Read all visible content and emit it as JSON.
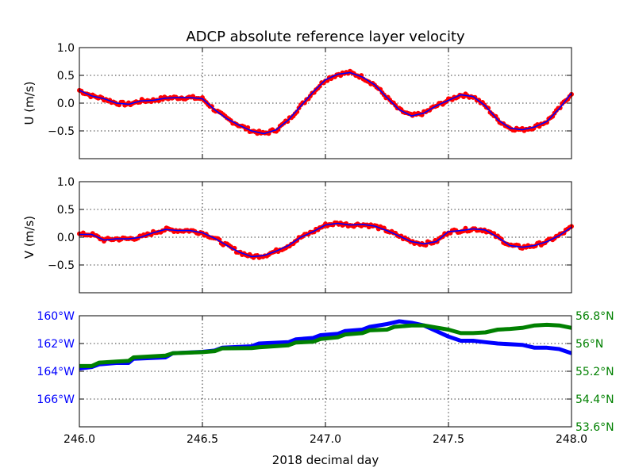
{
  "title": "ADCP absolute reference layer velocity",
  "xlabel": "2018 decimal day",
  "x_ticks": [
    "246.0",
    "246.5",
    "247.0",
    "247.5",
    "248.0"
  ],
  "colors": {
    "scatter": "#ff0000",
    "line": "#0000ff",
    "lon": "#0000ff",
    "lat": "#008000",
    "grid": "#000000"
  },
  "chart_data": [
    {
      "type": "line",
      "ylabel": "U (m/s)",
      "xlim": [
        246.0,
        248.0
      ],
      "ylim": [
        -1.0,
        1.0
      ],
      "y_ticks": [
        "1.0",
        "0.5",
        "0.0",
        "−0.5"
      ],
      "y_tick_values": [
        1.0,
        0.5,
        0.0,
        -0.5
      ],
      "grid": true,
      "series": [
        {
          "style": "red dots with blue smoothed line",
          "x": [
            246.0,
            246.05,
            246.1,
            246.15,
            246.2,
            246.25,
            246.3,
            246.35,
            246.4,
            246.45,
            246.5,
            246.55,
            246.6,
            246.65,
            246.7,
            246.75,
            246.8,
            246.85,
            246.9,
            246.95,
            247.0,
            247.05,
            247.1,
            247.15,
            247.2,
            247.25,
            247.3,
            247.35,
            247.4,
            247.45,
            247.5,
            247.55,
            247.6,
            247.65,
            247.7,
            247.75,
            247.8,
            247.85,
            247.9,
            247.95,
            248.0
          ],
          "values": [
            0.23,
            0.13,
            0.08,
            0.0,
            -0.02,
            0.04,
            0.05,
            0.09,
            0.1,
            0.1,
            0.08,
            -0.12,
            -0.28,
            -0.4,
            -0.5,
            -0.55,
            -0.48,
            -0.3,
            -0.05,
            0.2,
            0.42,
            0.52,
            0.55,
            0.47,
            0.33,
            0.1,
            -0.12,
            -0.23,
            -0.18,
            -0.05,
            0.05,
            0.15,
            0.12,
            -0.05,
            -0.3,
            -0.45,
            -0.48,
            -0.43,
            -0.33,
            -0.1,
            0.18
          ]
        }
      ]
    },
    {
      "type": "line",
      "ylabel": "V (m/s)",
      "xlim": [
        246.0,
        248.0
      ],
      "ylim": [
        -1.0,
        1.0
      ],
      "y_ticks": [
        "1.0",
        "0.5",
        "0.0",
        "−0.5"
      ],
      "y_tick_values": [
        1.0,
        0.5,
        0.0,
        -0.5
      ],
      "grid": true,
      "series": [
        {
          "style": "red dots with blue smoothed line",
          "x": [
            246.0,
            246.05,
            246.1,
            246.15,
            246.2,
            246.25,
            246.3,
            246.35,
            246.4,
            246.45,
            246.5,
            246.55,
            246.6,
            246.65,
            246.7,
            246.75,
            246.8,
            246.85,
            246.9,
            246.95,
            247.0,
            247.05,
            247.1,
            247.15,
            247.2,
            247.25,
            247.3,
            247.35,
            247.4,
            247.45,
            247.5,
            247.55,
            247.6,
            247.65,
            247.7,
            247.75,
            247.8,
            247.85,
            247.9,
            247.95,
            248.0
          ],
          "values": [
            0.05,
            0.05,
            -0.05,
            -0.03,
            -0.03,
            0.0,
            0.08,
            0.14,
            0.12,
            0.12,
            0.08,
            -0.02,
            -0.15,
            -0.27,
            -0.35,
            -0.33,
            -0.25,
            -0.15,
            0.0,
            0.1,
            0.22,
            0.25,
            0.22,
            0.23,
            0.2,
            0.12,
            0.02,
            -0.08,
            -0.12,
            -0.08,
            0.1,
            0.12,
            0.15,
            0.13,
            0.0,
            -0.15,
            -0.18,
            -0.15,
            -0.08,
            0.03,
            0.18
          ]
        }
      ]
    },
    {
      "type": "line",
      "xlim": [
        246.0,
        248.0
      ],
      "grid": true,
      "left_axis": {
        "ylim": [
          -168.0,
          -160.0
        ],
        "y_ticks": [
          "160°W",
          "162°W",
          "164°W",
          "166°W"
        ],
        "y_tick_values": [
          -160.0,
          -162.0,
          -164.0,
          -166.0
        ]
      },
      "right_axis": {
        "ylim": [
          53.6,
          56.8
        ],
        "y_ticks": [
          "56.8°N",
          "56°N",
          "55.2°N",
          "54.4°N",
          "53.6°N"
        ],
        "y_tick_values": [
          56.8,
          56.0,
          55.2,
          54.4,
          53.6
        ]
      },
      "series": [
        {
          "axis": "left",
          "color": "#0000ff",
          "x": [
            246.0,
            246.05,
            246.08,
            246.15,
            246.2,
            246.22,
            246.35,
            246.38,
            246.5,
            246.55,
            246.58,
            246.7,
            246.73,
            246.85,
            246.88,
            246.95,
            246.98,
            247.05,
            247.08,
            247.15,
            247.18,
            247.25,
            247.3,
            247.35,
            247.4,
            247.45,
            247.5,
            247.55,
            247.6,
            247.65,
            247.7,
            247.8,
            247.85,
            247.9,
            247.95,
            248.0
          ],
          "values": [
            -163.8,
            -163.7,
            -163.5,
            -163.4,
            -163.4,
            -163.1,
            -163.0,
            -162.7,
            -162.6,
            -162.5,
            -162.3,
            -162.2,
            -162.0,
            -161.9,
            -161.7,
            -161.6,
            -161.4,
            -161.3,
            -161.1,
            -161.0,
            -160.8,
            -160.6,
            -160.4,
            -160.5,
            -160.7,
            -161.1,
            -161.5,
            -161.8,
            -161.8,
            -161.9,
            -162.0,
            -162.1,
            -162.3,
            -162.3,
            -162.4,
            -162.7
          ]
        },
        {
          "axis": "right",
          "color": "#008000",
          "x": [
            246.0,
            246.05,
            246.08,
            246.15,
            246.2,
            246.22,
            246.35,
            246.38,
            246.5,
            246.55,
            246.58,
            246.7,
            246.73,
            246.85,
            246.88,
            246.95,
            246.98,
            247.05,
            247.08,
            247.15,
            247.18,
            247.25,
            247.28,
            247.35,
            247.4,
            247.5,
            247.55,
            247.6,
            247.65,
            247.7,
            247.75,
            247.8,
            247.85,
            247.9,
            247.95,
            248.0
          ],
          "values": [
            55.35,
            55.35,
            55.45,
            55.48,
            55.5,
            55.6,
            55.65,
            55.72,
            55.75,
            55.78,
            55.86,
            55.87,
            55.89,
            55.95,
            56.03,
            56.05,
            56.13,
            56.18,
            56.26,
            56.3,
            56.38,
            56.4,
            56.48,
            56.52,
            56.52,
            56.4,
            56.3,
            56.3,
            56.32,
            56.4,
            56.42,
            56.45,
            56.52,
            56.54,
            56.52,
            56.45
          ]
        }
      ]
    }
  ]
}
